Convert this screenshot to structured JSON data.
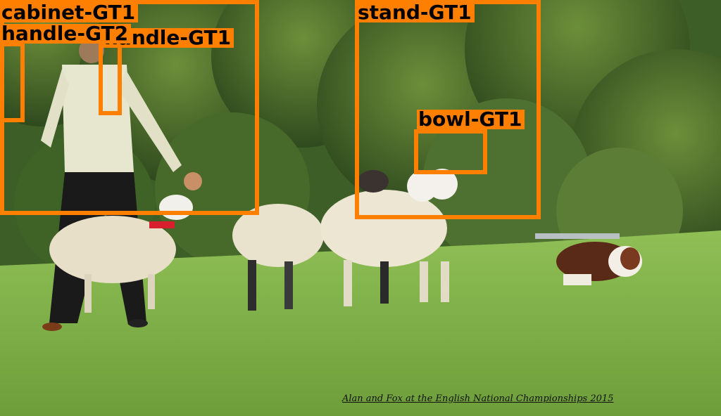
{
  "photo": {
    "description_icon": "photo-sheepdog-trial",
    "caption": "Alan and Fox at the English National Championships 2015"
  },
  "annotations": [
    {
      "label": "cabinet-GT1"
    },
    {
      "label": "handle-GT2"
    },
    {
      "label": "handle-GT1"
    },
    {
      "label": "stand-GT1"
    },
    {
      "label": "bowl-GT1"
    }
  ],
  "colors": {
    "box": "#ff7f00",
    "grass": "#7aa840",
    "trees": "#3a5a24"
  }
}
